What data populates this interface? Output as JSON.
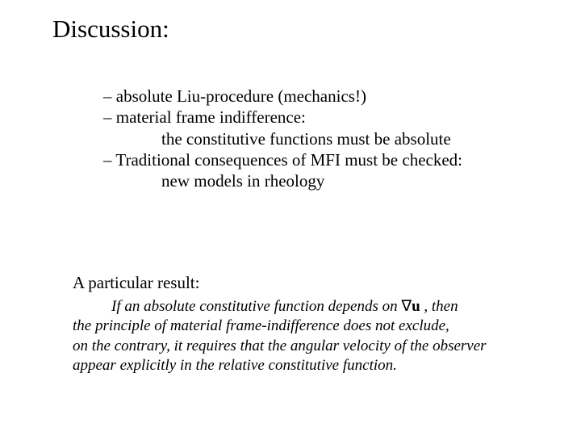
{
  "title": "Discussion:",
  "bullets": {
    "l1": "– absolute Liu-procedure (mechanics!)",
    "l2": "–  material frame indifference:",
    "l3": "the constitutive functions must be absolute",
    "l4": "–  Traditional consequences of MFI must be checked:",
    "l5": "new models in rheology"
  },
  "result": {
    "heading": "A particular result:",
    "line1_pre": "If an absolute constitutive function depends on ",
    "nabla": "∇",
    "u": "u",
    "line1_post": "  , then",
    "line2": "the principle of material frame-indifference does not exclude,",
    "line3": "on the contrary, it requires that the angular velocity of the observer",
    "line4": "appear explicitly in the relative constitutive function."
  },
  "colors": {
    "background": "#ffffff",
    "text": "#000000"
  },
  "fontsizes": {
    "title": 31,
    "body": 21,
    "result_body": 19
  }
}
